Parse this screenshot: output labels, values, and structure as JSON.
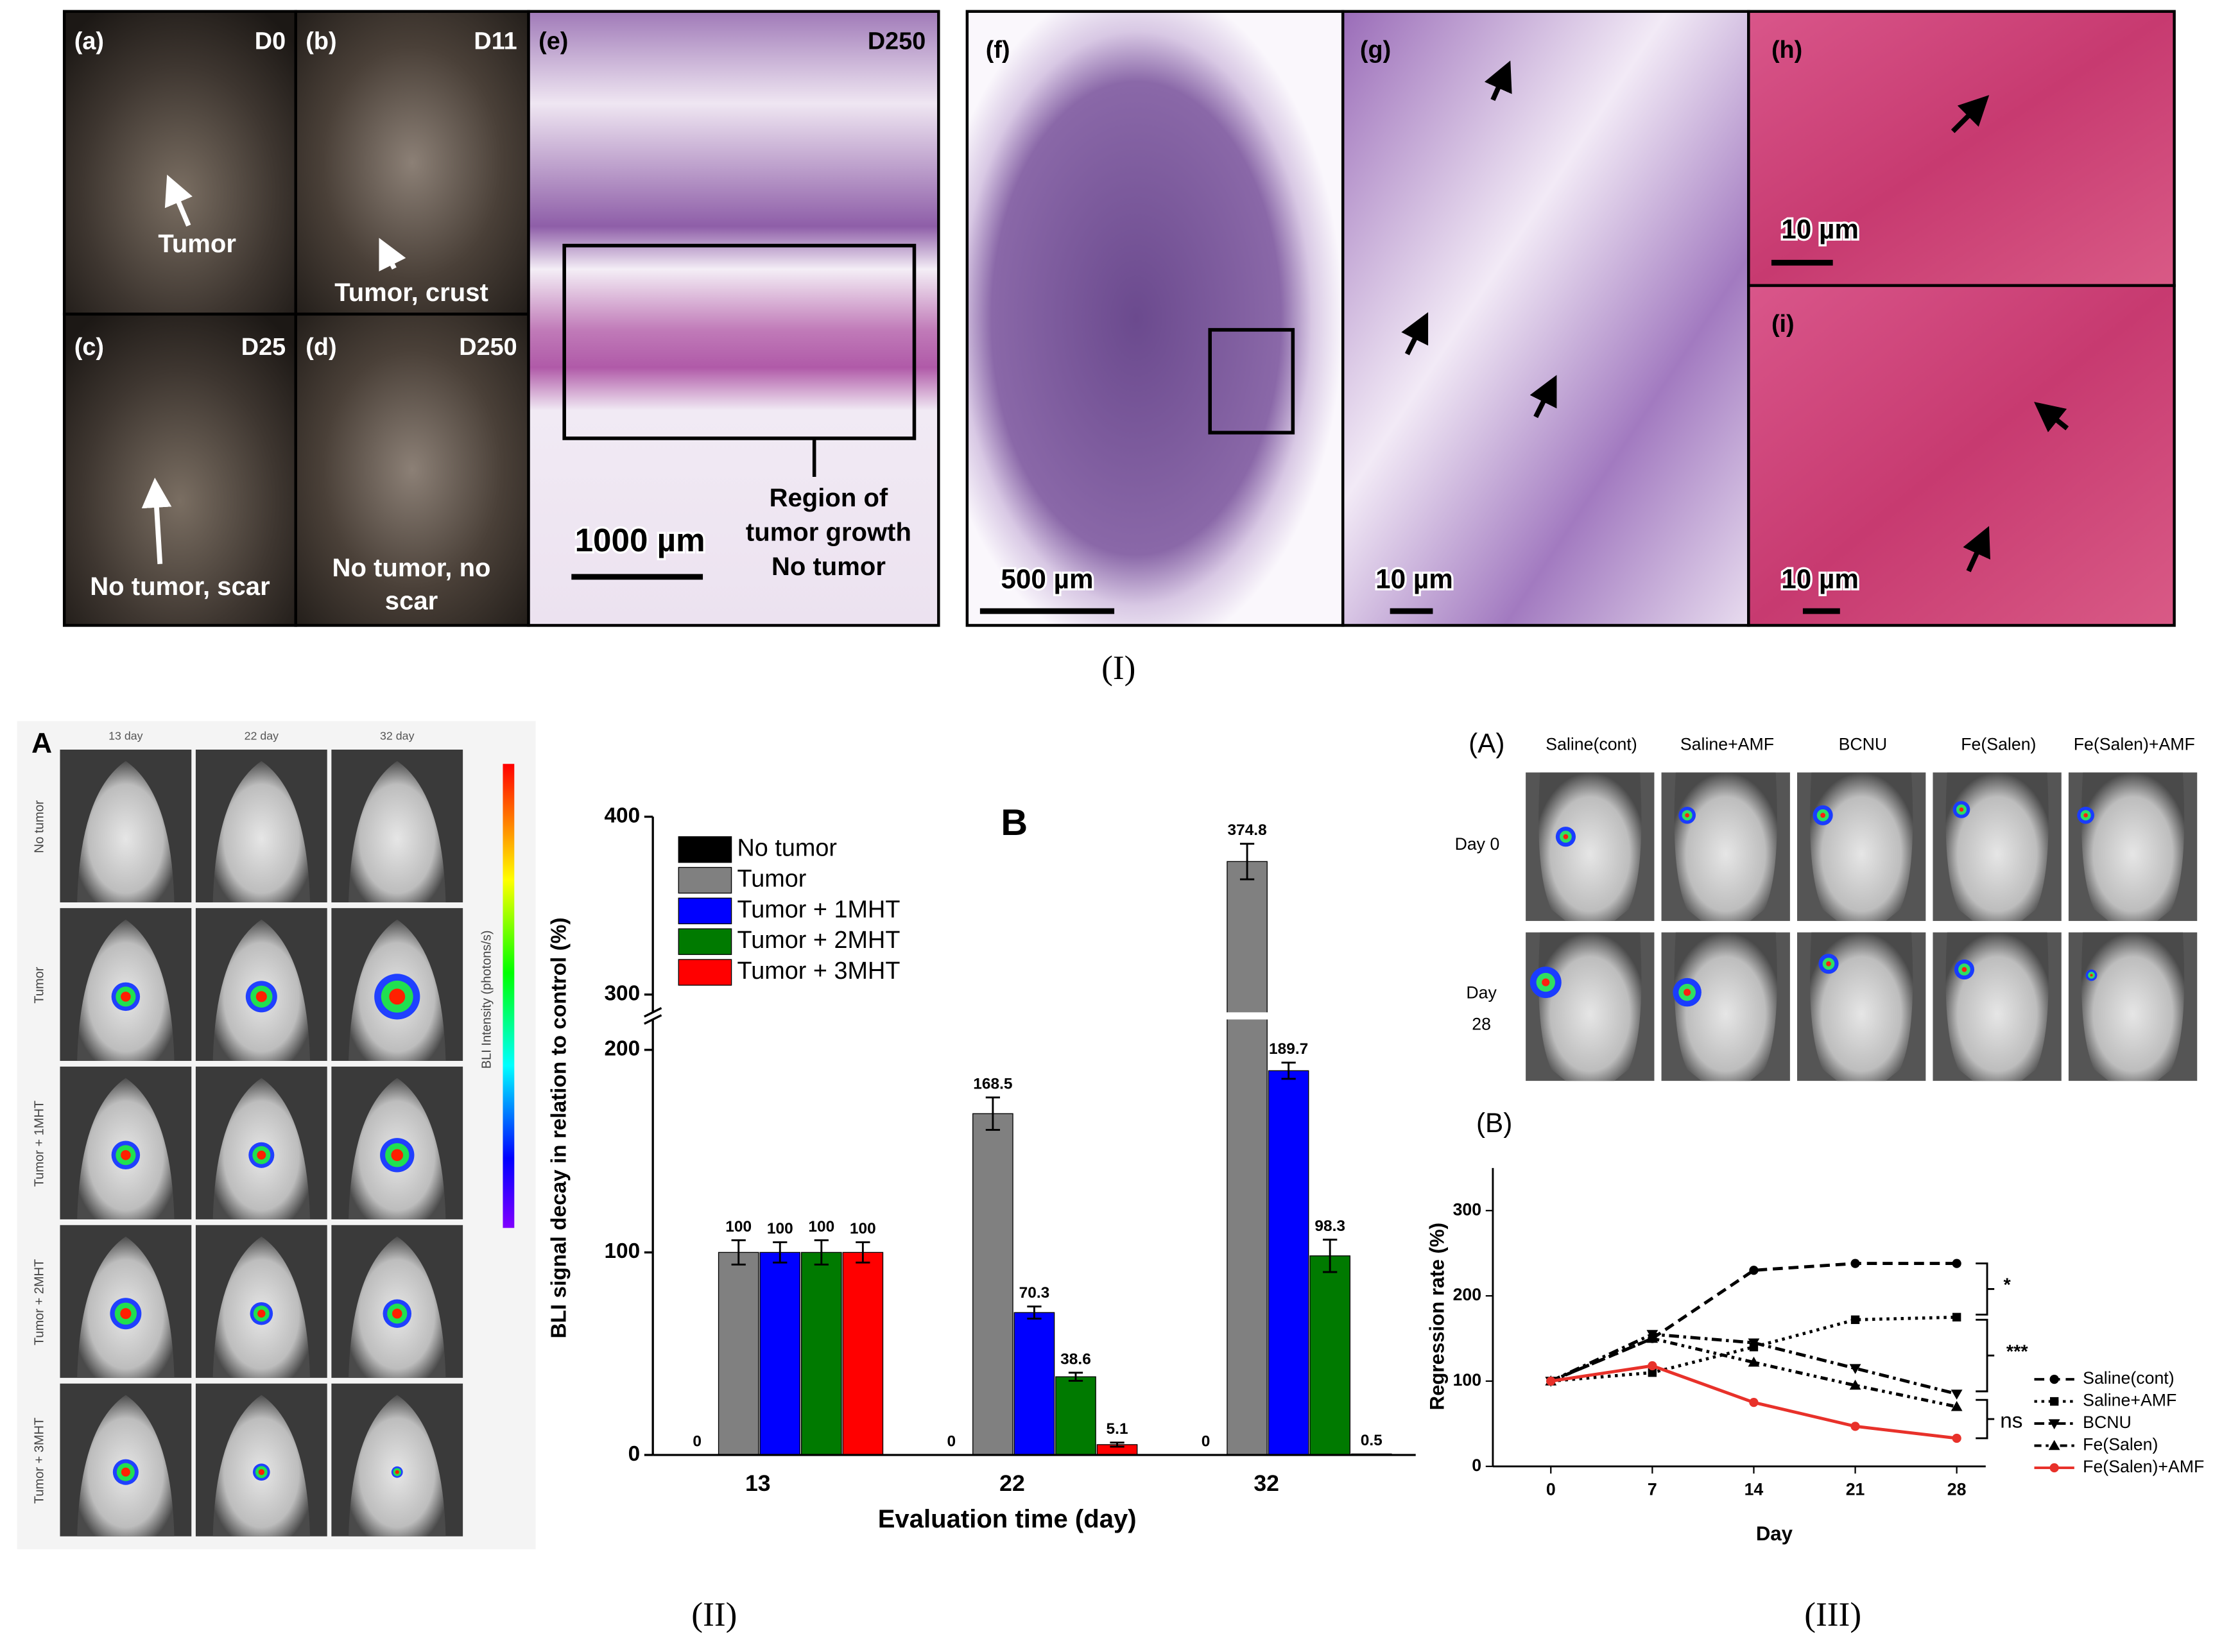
{
  "figure_I": {
    "caption": "(I)",
    "panels": [
      {
        "label": "(a)",
        "day": "D0",
        "note_lines": [
          "Tumor"
        ]
      },
      {
        "label": "(b)",
        "day": "D11",
        "note_lines": [
          "Tumor, crust"
        ]
      },
      {
        "label": "(c)",
        "day": "D25",
        "note_lines": [
          "No tumor, scar"
        ]
      },
      {
        "label": "(d)",
        "day": "D250",
        "note_lines": [
          "No tumor, no",
          "scar"
        ]
      },
      {
        "label": "(e)",
        "day": "D250",
        "scale": "1000 µm",
        "note_lines": [
          "Region of",
          "tumor growth",
          "No tumor"
        ]
      },
      {
        "label": "(f)",
        "scale": "500 µm"
      },
      {
        "label": "(g)",
        "scale": "10 µm"
      },
      {
        "label": "(h)",
        "scale": "10 µm"
      },
      {
        "label": "(i)",
        "scale": "10 µm"
      }
    ]
  },
  "figure_II": {
    "caption": "(II)",
    "panel_a": {
      "label": "A",
      "columns": [
        "13 day",
        "22 day",
        "32 day"
      ],
      "rows": [
        "No tumor",
        "Tumor",
        "Tumor + 1MHT",
        "Tumor + 2MHT",
        "Tumor + 3MHT"
      ],
      "colorbar_label": "BLI Intensity (photons/s)"
    }
  },
  "figure_III": {
    "caption": "(III)",
    "panel_a": {
      "label": "(A)",
      "columns": [
        "Saline(cont)",
        "Saline+AMF",
        "BCNU",
        "Fe(Salen)",
        "Fe(Salen)+AMF"
      ],
      "rows": [
        [
          "Day 0"
        ],
        [
          "Day",
          "28"
        ]
      ]
    }
  },
  "chart_data": [
    {
      "type": "bar",
      "panel_label": "B",
      "x_label": "Evaluation time (day)",
      "y_label": "BLI signal decay in relation to control (%)",
      "categories": [
        "13",
        "22",
        "32"
      ],
      "series": [
        {
          "name": "No tumor",
          "color": "#000000",
          "values": [
            0,
            0,
            0
          ],
          "errors": [
            0,
            0,
            0
          ]
        },
        {
          "name": "Tumor",
          "color": "#808080",
          "values": [
            100,
            168.5,
            374.8
          ],
          "errors": [
            6,
            8,
            10
          ]
        },
        {
          "name": "Tumor + 1MHT",
          "color": "#0000ff",
          "values": [
            100,
            70.3,
            189.7
          ],
          "errors": [
            5,
            3,
            4
          ]
        },
        {
          "name": "Tumor + 2MHT",
          "color": "#007a00",
          "values": [
            100,
            38.6,
            98.3
          ],
          "errors": [
            6,
            2,
            8
          ]
        },
        {
          "name": "Tumor + 3MHT",
          "color": "#ff0000",
          "values": [
            100,
            5.1,
            0.5
          ],
          "errors": [
            5,
            1,
            0
          ]
        }
      ],
      "ylim": [
        0,
        400
      ],
      "yticks": [
        0,
        100,
        200,
        300,
        400
      ],
      "y_break": [
        215,
        290
      ],
      "legend": "upper-left"
    },
    {
      "type": "line",
      "panel_label": "(B)",
      "x_label": "Day",
      "y_label": "Regression rate (%)",
      "x": [
        0,
        7,
        14,
        21,
        28
      ],
      "xlim": [
        -4,
        30
      ],
      "xticks": [
        0,
        7,
        14,
        21,
        28
      ],
      "ylim": [
        0,
        350
      ],
      "yticks": [
        0,
        100,
        200,
        300
      ],
      "series": [
        {
          "name": "Saline(cont)",
          "color": "#000000",
          "dash": "7,4",
          "marker": "circle",
          "values": [
            100,
            150,
            230,
            238,
            238
          ]
        },
        {
          "name": "Saline+AMF",
          "color": "#000000",
          "dash": "2,3",
          "marker": "square",
          "values": [
            100,
            110,
            140,
            172,
            175
          ]
        },
        {
          "name": "BCNU",
          "color": "#000000",
          "dash": "7,3,2,3",
          "marker": "triangle-down",
          "values": [
            100,
            155,
            145,
            115,
            85
          ]
        },
        {
          "name": "Fe(Salen)",
          "color": "#000000",
          "dash": "5,3,2,3,2,3",
          "marker": "triangle-up",
          "values": [
            100,
            150,
            122,
            95,
            70
          ]
        },
        {
          "name": "Fe(Salen)+AMF",
          "color": "#e8312a",
          "dash": "none",
          "marker": "circle",
          "values": [
            100,
            118,
            75,
            47,
            33
          ]
        }
      ],
      "annotations": [
        "*",
        "***",
        "ns"
      ],
      "legend": "right"
    }
  ]
}
